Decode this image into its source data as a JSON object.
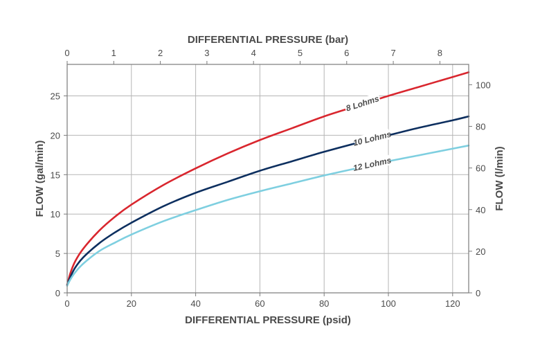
{
  "chart_data": {
    "type": "line",
    "x_bottom_label": "DIFFERENTIAL PRESSURE (psid)",
    "x_top_label": "DIFFERENTIAL PRESSURE (bar)",
    "y_left_label": "FLOW (gal/min)",
    "y_right_label": "FLOW (l/min)",
    "x_bottom_range": [
      0,
      125
    ],
    "x_bottom_ticks": [
      0,
      20,
      40,
      60,
      80,
      100,
      120
    ],
    "x_top_ticks": [
      0,
      1,
      2,
      3,
      4,
      5,
      6,
      7,
      8
    ],
    "y_left_range": [
      0,
      29
    ],
    "y_left_ticks": [
      0,
      5,
      10,
      15,
      20,
      25
    ],
    "y_right_ticks": [
      0,
      20,
      40,
      60,
      80,
      100
    ],
    "grid": true,
    "x": [
      0,
      1,
      2.5,
      5,
      10,
      15,
      20,
      30,
      40,
      50,
      60,
      70,
      80,
      90,
      100,
      110,
      120,
      125
    ],
    "series": [
      {
        "name": "8 Lohms",
        "color": "#d9262e",
        "values": [
          1.0,
          2.5,
          4.0,
          5.6,
          7.9,
          9.7,
          11.2,
          13.7,
          15.8,
          17.7,
          19.4,
          20.9,
          22.4,
          23.7,
          25.0,
          26.2,
          27.4,
          28.0
        ]
      },
      {
        "name": "10 Lohms",
        "color": "#0d2f5f",
        "values": [
          1.0,
          2.0,
          3.2,
          4.5,
          6.3,
          7.7,
          8.9,
          11.0,
          12.7,
          14.1,
          15.5,
          16.7,
          17.9,
          19.0,
          20.0,
          21.0,
          21.9,
          22.4
        ]
      },
      {
        "name": "12 Lohms",
        "color": "#7ecfe0",
        "values": [
          0.9,
          1.7,
          2.6,
          3.7,
          5.3,
          6.4,
          7.4,
          9.1,
          10.5,
          11.8,
          12.9,
          13.9,
          14.9,
          15.8,
          16.7,
          17.5,
          18.3,
          18.7
        ]
      }
    ]
  }
}
